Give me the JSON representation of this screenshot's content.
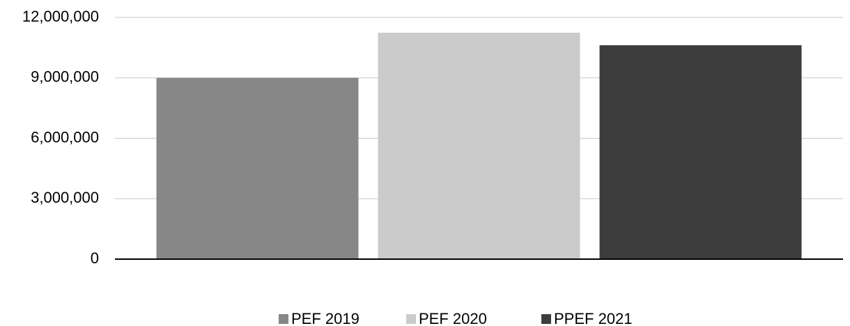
{
  "chart_data": {
    "type": "bar",
    "categories": [
      null
    ],
    "series": [
      {
        "name": "PEF 2019",
        "color": "#878787",
        "values": [
          9000000
        ]
      },
      {
        "name": "PEF 2020",
        "color": "#cbcbcb",
        "values": [
          11240000
        ]
      },
      {
        "name": "PPEF 2021",
        "color": "#3d3d3d",
        "values": [
          10620000
        ]
      }
    ],
    "ylim": [
      0,
      12000000
    ],
    "yticks": [
      0,
      {
        "value": 3000000,
        "label": "3,000,000"
      },
      {
        "value": 6000000,
        "label": "6,000,000"
      },
      {
        "value": 9000000,
        "label": "9,000,000"
      },
      {
        "value": 12000000,
        "label": "12,000,000"
      }
    ],
    "grid": true,
    "legend": "bottom"
  }
}
